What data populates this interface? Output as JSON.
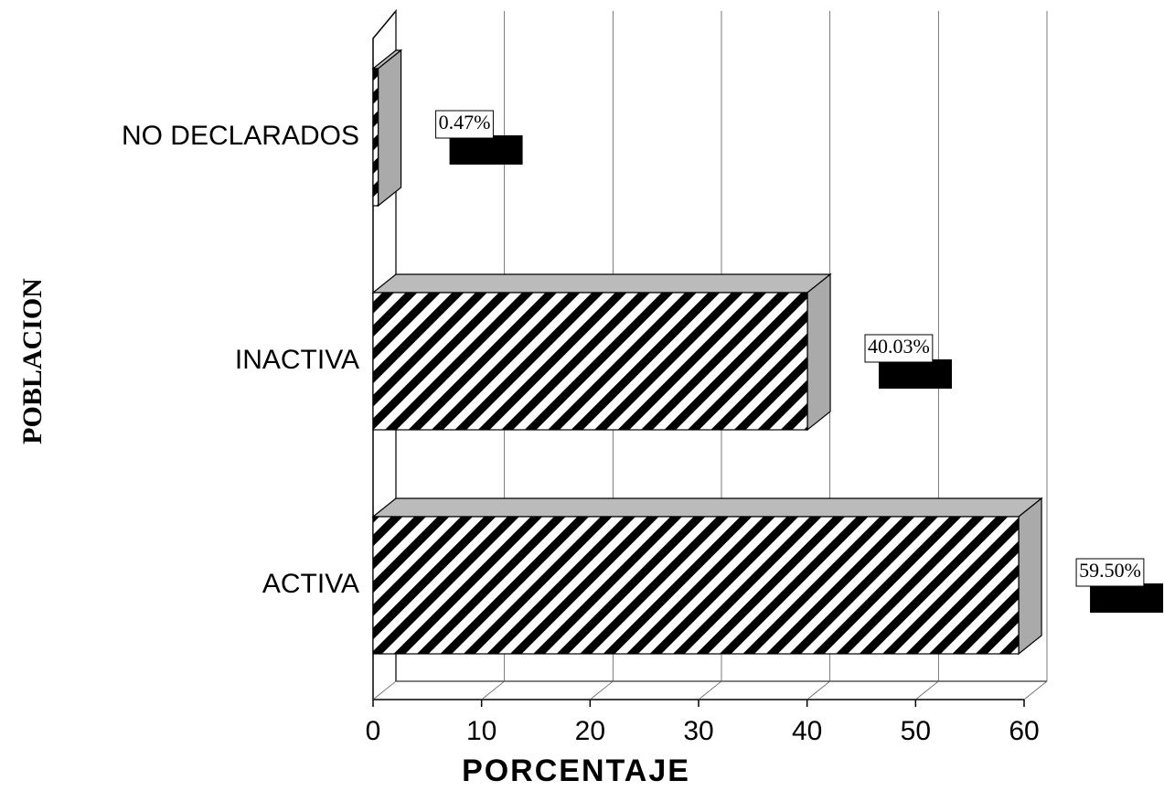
{
  "chart_data": {
    "type": "bar",
    "orientation": "horizontal",
    "categories": [
      "NO DECLARADOS",
      "INACTIVA",
      "ACTIVA"
    ],
    "values": [
      0.47,
      40.03,
      59.5
    ],
    "value_labels": [
      "0.47%",
      "40.03%",
      "59.50%"
    ],
    "x_label": "PORCENTAJE",
    "y_label": "POBLACION",
    "xlim": [
      0,
      60
    ],
    "xticks": [
      0,
      10,
      20,
      30,
      40,
      50,
      60
    ],
    "grid": true
  }
}
